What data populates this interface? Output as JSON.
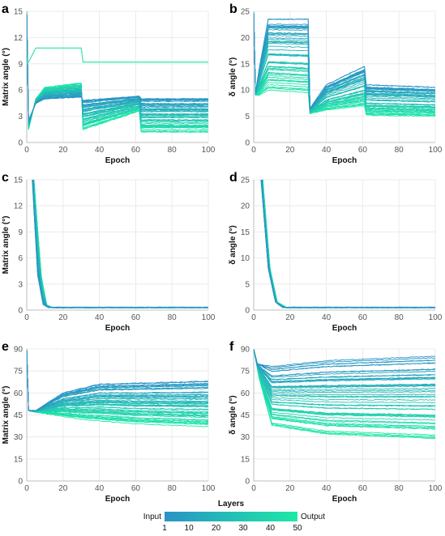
{
  "chart_data": [
    {
      "panel": "a",
      "type": "line",
      "xlabel": "Epoch",
      "ylabel": "Matrix angle (°)",
      "xlim": [
        0,
        100
      ],
      "ylim": [
        0,
        15
      ],
      "xticks": [
        "0",
        "20",
        "40",
        "60",
        "80",
        "100"
      ],
      "yticks": [
        "0",
        "3",
        "6",
        "9",
        "12",
        "15"
      ],
      "grid": true,
      "layers": 50,
      "layer_profiles": {
        "first": [
          [
            0,
            15
          ],
          [
            1,
            2.5
          ],
          [
            5,
            4.5
          ],
          [
            10,
            5.0
          ],
          [
            30,
            5.2
          ],
          [
            31,
            4.8
          ],
          [
            62,
            5.3
          ],
          [
            63,
            5.0
          ],
          [
            100,
            5.0
          ]
        ],
        "last": [
          [
            0,
            15
          ],
          [
            1,
            1.5
          ],
          [
            5,
            5.0
          ],
          [
            10,
            6.3
          ],
          [
            30,
            6.8
          ],
          [
            31,
            1.5
          ],
          [
            62,
            3.6
          ],
          [
            63,
            1.2
          ],
          [
            100,
            1.2
          ]
        ]
      },
      "outlier_series": [
        [
          0,
          9.0
        ],
        [
          1,
          9.2
        ],
        [
          5,
          10.8
        ],
        [
          30,
          10.8
        ],
        [
          31,
          9.2
        ],
        [
          100,
          9.2
        ]
      ]
    },
    {
      "panel": "b",
      "type": "line",
      "xlabel": "Epoch",
      "ylabel": "δ angle (°)",
      "xlim": [
        0,
        100
      ],
      "ylim": [
        0,
        25
      ],
      "xticks": [
        "0",
        "20",
        "40",
        "60",
        "80",
        "100"
      ],
      "yticks": [
        "0",
        "5",
        "10",
        "15",
        "20",
        "25"
      ],
      "grid": true,
      "layers": 50,
      "layer_profiles": {
        "first": [
          [
            0,
            25
          ],
          [
            1,
            9.5
          ],
          [
            3,
            14
          ],
          [
            8,
            23.5
          ],
          [
            30,
            23.5
          ],
          [
            31,
            6.5
          ],
          [
            40,
            11
          ],
          [
            61,
            14.5
          ],
          [
            62,
            11
          ],
          [
            100,
            10.5
          ]
        ],
        "last": [
          [
            0,
            25
          ],
          [
            1,
            9.0
          ],
          [
            3,
            9.0
          ],
          [
            8,
            10
          ],
          [
            30,
            9.5
          ],
          [
            31,
            5.5
          ],
          [
            40,
            6.2
          ],
          [
            61,
            7.0
          ],
          [
            62,
            5.2
          ],
          [
            100,
            5.0
          ]
        ]
      }
    },
    {
      "panel": "c",
      "type": "line",
      "xlabel": "Epoch",
      "ylabel": "Matrix angle (°)",
      "xlim": [
        0,
        100
      ],
      "ylim": [
        0,
        15
      ],
      "xticks": [
        "0",
        "20",
        "40",
        "60",
        "80",
        "100"
      ],
      "yticks": [
        "0",
        "3",
        "6",
        "9",
        "12",
        "15"
      ],
      "grid": true,
      "layers": 50,
      "layer_profiles": {
        "first": [
          [
            0,
            90
          ],
          [
            3,
            15
          ],
          [
            6,
            4
          ],
          [
            9,
            0.6
          ],
          [
            12,
            0.3
          ],
          [
            100,
            0.3
          ]
        ],
        "last": [
          [
            0,
            90
          ],
          [
            4,
            15
          ],
          [
            8,
            4
          ],
          [
            11,
            0.6
          ],
          [
            14,
            0.3
          ],
          [
            100,
            0.3
          ]
        ]
      }
    },
    {
      "panel": "d",
      "type": "line",
      "xlabel": "Epoch",
      "ylabel": "δ angle (°)",
      "xlim": [
        0,
        100
      ],
      "ylim": [
        0,
        25
      ],
      "xticks": [
        "0",
        "20",
        "40",
        "60",
        "80",
        "100"
      ],
      "yticks": [
        "0",
        "5",
        "10",
        "15",
        "20",
        "25"
      ],
      "grid": true,
      "layers": 50,
      "layer_profiles": {
        "first": [
          [
            0,
            90
          ],
          [
            4,
            25
          ],
          [
            8,
            8
          ],
          [
            12,
            1.5
          ],
          [
            16,
            0.5
          ],
          [
            100,
            0.5
          ]
        ],
        "last": [
          [
            0,
            90
          ],
          [
            5,
            25
          ],
          [
            9,
            8
          ],
          [
            13,
            1.5
          ],
          [
            18,
            0.5
          ],
          [
            100,
            0.5
          ]
        ]
      }
    },
    {
      "panel": "e",
      "type": "line",
      "xlabel": "Epoch",
      "ylabel": "Matrix angle (°)",
      "xlim": [
        0,
        100
      ],
      "ylim": [
        0,
        90
      ],
      "xticks": [
        "0",
        "20",
        "40",
        "60",
        "80",
        "100"
      ],
      "yticks": [
        "0",
        "15",
        "30",
        "45",
        "60",
        "75",
        "90"
      ],
      "grid": true,
      "layers": 50,
      "layer_profiles": {
        "first": [
          [
            0,
            90
          ],
          [
            1,
            48
          ],
          [
            5,
            48
          ],
          [
            20,
            60
          ],
          [
            40,
            66
          ],
          [
            100,
            68
          ]
        ],
        "last": [
          [
            0,
            90
          ],
          [
            1,
            48
          ],
          [
            5,
            47
          ],
          [
            30,
            42
          ],
          [
            60,
            39
          ],
          [
            100,
            37
          ]
        ]
      }
    },
    {
      "panel": "f",
      "type": "line",
      "xlabel": "Epoch",
      "ylabel": "δ angle (°)",
      "xlim": [
        0,
        100
      ],
      "ylim": [
        0,
        90
      ],
      "xticks": [
        "0",
        "20",
        "40",
        "60",
        "80",
        "100"
      ],
      "yticks": [
        "0",
        "15",
        "30",
        "45",
        "60",
        "75",
        "90"
      ],
      "grid": true,
      "layers": 50,
      "layer_profiles": {
        "first": [
          [
            0,
            90
          ],
          [
            2,
            80
          ],
          [
            10,
            78
          ],
          [
            40,
            82
          ],
          [
            100,
            85
          ]
        ],
        "last": [
          [
            0,
            90
          ],
          [
            3,
            70
          ],
          [
            10,
            38
          ],
          [
            40,
            32
          ],
          [
            100,
            29
          ]
        ]
      }
    }
  ],
  "legend": {
    "title": "Layers",
    "left_label": "Input",
    "right_label": "Output",
    "ticks": [
      "1",
      "10",
      "20",
      "30",
      "40",
      "50"
    ],
    "color_start": "#2a93c6",
    "color_end": "#1de9a6"
  }
}
